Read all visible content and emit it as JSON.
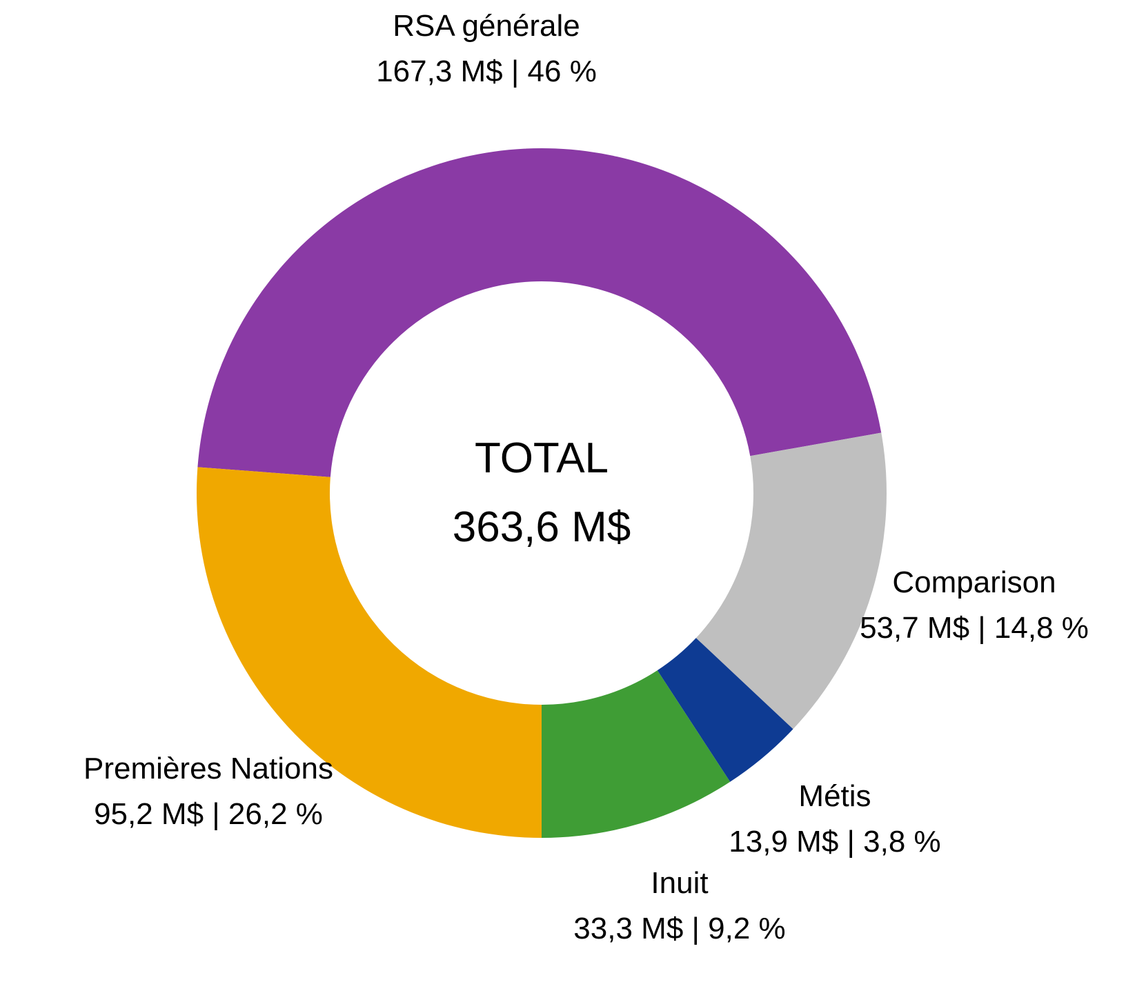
{
  "chart_data": {
    "type": "pie",
    "variant": "donut",
    "title": "",
    "center_label": {
      "line1": "TOTAL",
      "line2": "363,6 M$"
    },
    "total_value_musd": 363.6,
    "unit": "M$",
    "segments": [
      {
        "label": "RSA générale",
        "value_musd": 167.3,
        "percent": 46,
        "value_text": "167,3 M$ | 46 %",
        "color": "#8A3AA5"
      },
      {
        "label": "Comparison",
        "value_musd": 53.7,
        "percent": 14.8,
        "value_text": "53,7 M$ | 14,8 %",
        "color": "#BFBFBF"
      },
      {
        "label": "Métis",
        "value_musd": 13.9,
        "percent": 3.8,
        "value_text": "13,9 M$ | 3,8 %",
        "color": "#0E3B93"
      },
      {
        "label": "Inuit",
        "value_musd": 33.3,
        "percent": 9.2,
        "value_text": "33,3 M$ | 9,2 %",
        "color": "#3F9D35"
      },
      {
        "label": "Premières Nations",
        "value_musd": 95.2,
        "percent": 26.2,
        "value_text": "95,2 M$ | 26,2 %",
        "color": "#F0A800"
      }
    ],
    "layout": {
      "start_angle_deg_clockwise_from_top": 274.32,
      "direction": "clockwise",
      "legend": "none",
      "labels": "outside",
      "background": "#FFFFFF"
    }
  }
}
